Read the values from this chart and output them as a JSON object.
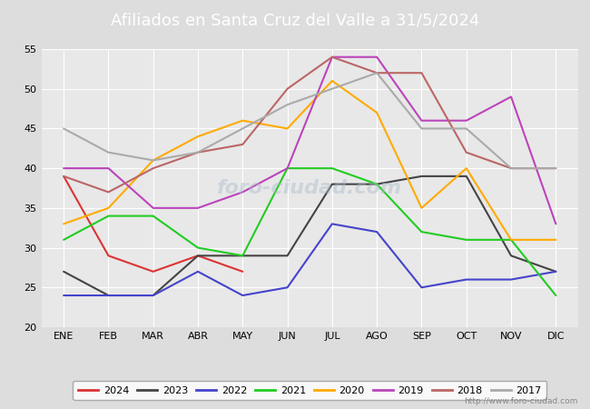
{
  "title": "Afiliados en Santa Cruz del Valle a 31/5/2024",
  "title_bg": "#5588bb",
  "months": [
    "ENE",
    "FEB",
    "MAR",
    "ABR",
    "MAY",
    "JUN",
    "JUL",
    "AGO",
    "SEP",
    "OCT",
    "NOV",
    "DIC"
  ],
  "series": {
    "2024": {
      "color": "#dd3333",
      "data": [
        39,
        29,
        27,
        29,
        27,
        null,
        null,
        null,
        null,
        null,
        null,
        null
      ]
    },
    "2023": {
      "color": "#444444",
      "data": [
        27,
        24,
        24,
        29,
        29,
        29,
        38,
        38,
        39,
        39,
        29,
        27
      ]
    },
    "2022": {
      "color": "#4444cc",
      "data": [
        24,
        24,
        24,
        27,
        24,
        25,
        33,
        32,
        25,
        26,
        26,
        27
      ]
    },
    "2021": {
      "color": "#22cc22",
      "data": [
        31,
        34,
        34,
        30,
        29,
        40,
        40,
        38,
        32,
        31,
        31,
        24
      ]
    },
    "2020": {
      "color": "#ffaa00",
      "data": [
        33,
        35,
        41,
        44,
        46,
        45,
        51,
        47,
        35,
        40,
        31,
        31
      ]
    },
    "2019": {
      "color": "#bb44bb",
      "data": [
        40,
        40,
        35,
        35,
        37,
        40,
        54,
        54,
        46,
        46,
        49,
        33
      ]
    },
    "2018": {
      "color": "#bb6666",
      "data": [
        39,
        37,
        40,
        42,
        43,
        50,
        54,
        52,
        52,
        42,
        40,
        40
      ]
    },
    "2017": {
      "color": "#aaaaaa",
      "data": [
        45,
        42,
        41,
        42,
        45,
        48,
        50,
        52,
        45,
        45,
        40,
        40
      ]
    }
  },
  "ylim": [
    20,
    55
  ],
  "yticks": [
    20,
    25,
    30,
    35,
    40,
    45,
    50,
    55
  ],
  "watermark": "http://www.foro-ciudad.com",
  "watermark_text": "foro-ciudad.com",
  "legend_order": [
    "2024",
    "2023",
    "2022",
    "2021",
    "2020",
    "2019",
    "2018",
    "2017"
  ],
  "fig_bg": "#dddddd",
  "plot_bg": "#e8e8e8",
  "grid_color": "#ffffff",
  "linewidth": 1.5,
  "title_fontsize": 13,
  "tick_fontsize": 8,
  "legend_fontsize": 8
}
